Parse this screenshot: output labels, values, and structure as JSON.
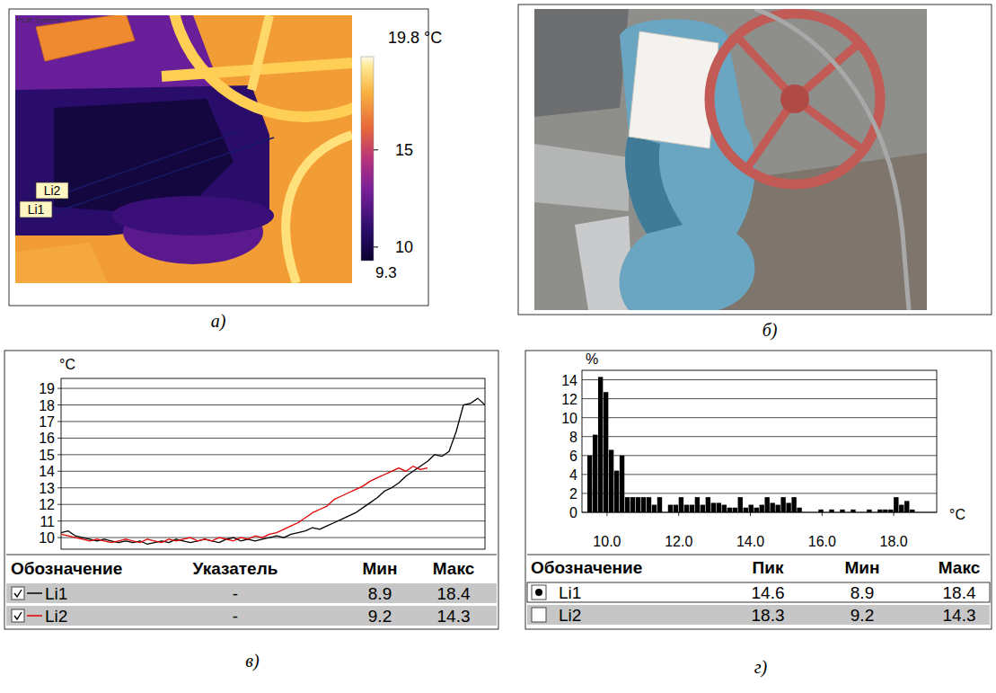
{
  "thermogram": {
    "brand": "FLIR Systems",
    "caption": "а)",
    "colorbar": {
      "range": [
        9.3,
        19.8
      ],
      "range_labels": [
        "9.3",
        "19.8 °C"
      ],
      "ticks": [
        10,
        15
      ]
    },
    "lines": [
      "Li2",
      "Li1"
    ]
  },
  "photo": {
    "caption": "б)"
  },
  "chart_data": [
    {
      "type": "line",
      "caption": "в)",
      "y_label": "°C",
      "xlim": [
        0,
        59
      ],
      "ylim": [
        9.3,
        19.6
      ],
      "yticks": [
        10,
        11,
        12,
        13,
        14,
        15,
        16,
        17,
        18,
        19
      ],
      "grid": true,
      "tick_labels": "y",
      "series": [
        {
          "name": "Li1",
          "color": "#000000",
          "x": [
            0,
            1,
            2,
            3,
            4,
            5,
            6,
            7,
            8,
            9,
            10,
            11,
            12,
            13,
            14,
            15,
            16,
            17,
            18,
            19,
            20,
            21,
            22,
            23,
            24,
            25,
            26,
            27,
            28,
            29,
            30,
            31,
            32,
            33,
            34,
            35,
            36,
            37,
            38,
            39,
            40,
            41,
            42,
            43,
            44,
            45,
            46,
            47,
            48,
            49,
            50,
            51,
            52,
            53,
            54,
            55,
            56,
            57,
            58,
            59
          ],
          "values": [
            10.3,
            10.4,
            10.1,
            10.0,
            9.9,
            9.8,
            9.9,
            9.8,
            9.7,
            9.8,
            9.7,
            9.8,
            9.6,
            9.7,
            9.8,
            9.7,
            9.9,
            9.8,
            9.7,
            9.8,
            9.9,
            9.8,
            9.7,
            9.9,
            10.0,
            9.8,
            9.9,
            9.8,
            9.9,
            10.0,
            10.1,
            10.0,
            10.2,
            10.3,
            10.4,
            10.6,
            10.5,
            10.7,
            10.9,
            11.1,
            11.3,
            11.5,
            11.8,
            12.1,
            12.4,
            12.8,
            13.0,
            13.3,
            13.7,
            14.0,
            14.3,
            14.6,
            15.0,
            14.9,
            15.2,
            16.4,
            18.0,
            18.1,
            18.4,
            18.0
          ]
        },
        {
          "name": "Li2",
          "color": "#e00000",
          "x": [
            0,
            1,
            2,
            3,
            4,
            5,
            6,
            7,
            8,
            9,
            10,
            11,
            12,
            13,
            14,
            15,
            16,
            17,
            18,
            19,
            20,
            21,
            22,
            23,
            24,
            25,
            26,
            27,
            28,
            29,
            30,
            31,
            32,
            33,
            34,
            35,
            36,
            37,
            38,
            39,
            40,
            41,
            42,
            43,
            44,
            45,
            46,
            47,
            48,
            49,
            50,
            51
          ],
          "values": [
            10.2,
            10.1,
            10.0,
            9.9,
            9.8,
            9.9,
            9.8,
            9.7,
            9.8,
            9.9,
            9.8,
            9.7,
            9.9,
            9.8,
            9.7,
            9.9,
            9.8,
            9.9,
            10.0,
            9.8,
            9.9,
            9.8,
            10.0,
            9.9,
            9.8,
            10.0,
            9.9,
            10.1,
            10.0,
            10.2,
            10.3,
            10.5,
            10.7,
            10.9,
            11.2,
            11.5,
            11.7,
            11.9,
            12.3,
            12.5,
            12.7,
            12.9,
            13.1,
            13.4,
            13.6,
            13.8,
            14.0,
            14.2,
            14.0,
            14.3,
            14.1,
            14.2
          ]
        }
      ],
      "table": {
        "header": [
          "Обозначение",
          "Указатель",
          "Мин",
          "Макс"
        ],
        "rows": [
          [
            "-",
            "8.9",
            "18.4"
          ],
          [
            "-",
            "9.2",
            "14.3"
          ]
        ]
      }
    },
    {
      "type": "histogram",
      "caption": "г)",
      "y_label": "%",
      "x_label": "°C",
      "color": "#000000",
      "bins": [
        9.45,
        9.6,
        9.75,
        9.9,
        10.05,
        10.2,
        10.35,
        10.5,
        10.65,
        10.8,
        10.95,
        11.1,
        11.25,
        11.4,
        11.55,
        11.7,
        11.85,
        12,
        12.15,
        12.3,
        12.45,
        12.6,
        12.75,
        12.9,
        13.05,
        13.2,
        13.35,
        13.5,
        13.65,
        13.8,
        13.95,
        14.1,
        14.25,
        14.4,
        14.55,
        14.7,
        14.85,
        15,
        15.15,
        15.3,
        15.45,
        15.6,
        15.75,
        15.9,
        16.05,
        16.2,
        16.35,
        16.5,
        16.65,
        16.8,
        16.95,
        17.1,
        17.25,
        17.4,
        17.55,
        17.7,
        17.85,
        18,
        18.15,
        18.3,
        18.45,
        18.6,
        18.75,
        18.9,
        19.05
      ],
      "values": [
        6.0,
        8.2,
        14.3,
        12.7,
        6.6,
        4.4,
        6.0,
        1.6,
        1.6,
        1.6,
        1.6,
        1.6,
        0.8,
        1.6,
        0,
        0.8,
        0.8,
        1.6,
        0.8,
        0.8,
        1.6,
        0.8,
        1.6,
        1.0,
        1.0,
        0.8,
        0.5,
        0.5,
        1.6,
        0.5,
        0.8,
        0.5,
        0.8,
        1.6,
        1.0,
        0.8,
        1.6,
        1.0,
        1.6,
        0.5,
        0,
        0,
        0,
        0.3,
        0,
        0.3,
        0,
        0.3,
        0,
        0.3,
        0,
        0,
        0.3,
        0,
        0.3,
        0.3,
        0.3,
        1.6,
        0.8,
        1.2,
        0.3,
        0,
        0,
        0
      ],
      "xlim": [
        9.3,
        19.2
      ],
      "ylim": [
        0,
        15
      ],
      "xticks": [
        {
          "value": 10,
          "label": "10.0"
        },
        {
          "value": 12,
          "label": "12.0"
        },
        {
          "value": 14,
          "label": "14.0"
        },
        {
          "value": 16,
          "label": "16.0"
        },
        {
          "value": 18,
          "label": "18.0"
        }
      ],
      "yticks": [
        0,
        2,
        4,
        6,
        8,
        10,
        12,
        14
      ],
      "grid": true,
      "table": {
        "header": [
          "Обозначение",
          "Пик",
          "Мин",
          "Макс"
        ],
        "rows": [
          [
            "Li1",
            "14.6",
            "8.9",
            "18.4"
          ],
          [
            "Li2",
            "18.3",
            "9.2",
            "14.3"
          ]
        ],
        "selected": 0
      }
    }
  ]
}
